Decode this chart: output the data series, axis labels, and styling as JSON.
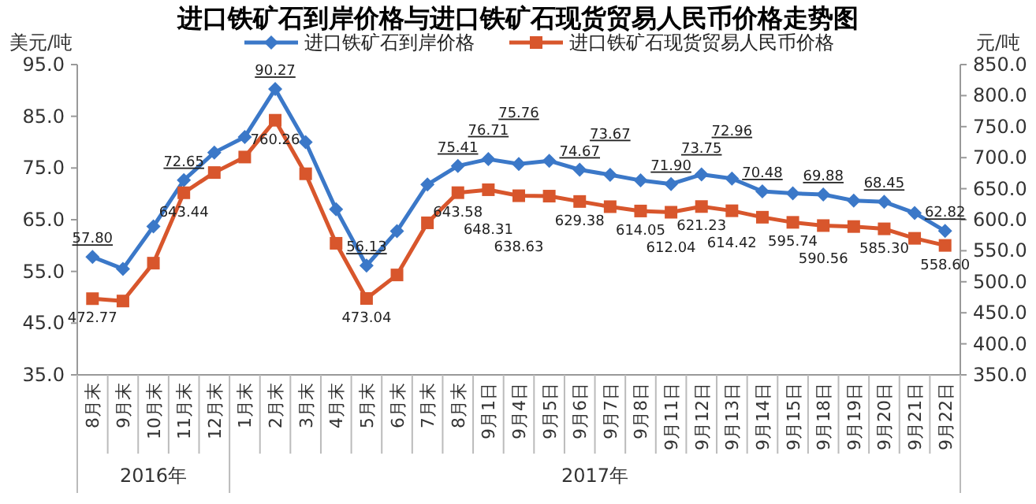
{
  "chart_data": {
    "type": "line",
    "title": "进口铁矿石到岸价格与进口铁矿石现货贸易人民币价格走势图",
    "ylabel": "美元/吨",
    "y2label": "元/吨",
    "categories": [
      "8月末",
      "9月末",
      "10月末",
      "11月末",
      "12月末",
      "1月末",
      "2月末",
      "3月末",
      "4月末",
      "5月末",
      "6月末",
      "7月末",
      "8月末",
      "9月1日",
      "9月4日",
      "9月5日",
      "9月6日",
      "9月7日",
      "9月8日",
      "9月11日",
      "9月12日",
      "9月13日",
      "9月14日",
      "9月15日",
      "9月18日",
      "9月19日",
      "9月20日",
      "9月21日",
      "9月22日"
    ],
    "series": [
      {
        "name": "进口铁矿石到岸价格",
        "color": "#3b78c8",
        "marker": "diamond",
        "values": [
          57.8,
          55.5,
          63.7,
          72.65,
          78,
          81,
          90.27,
          80,
          67,
          56.13,
          62.8,
          71.8,
          75.41,
          76.71,
          75.76,
          76.4,
          74.67,
          73.67,
          72.6,
          71.9,
          73.75,
          72.96,
          70.48,
          70.1,
          69.88,
          68.7,
          68.45,
          66.3,
          62.82
        ],
        "value_labels": [
          "57.80",
          null,
          null,
          "72.65",
          null,
          null,
          "90.27",
          null,
          null,
          "56.13",
          null,
          null,
          "75.41",
          "76.71",
          "75.76",
          null,
          "74.67",
          "73.67",
          null,
          "71.90",
          "73.75",
          "72.96",
          "70.48",
          null,
          "69.88",
          null,
          "68.45",
          null,
          "62.82"
        ]
      },
      {
        "name": "进口铁矿石现货贸易人民币价格",
        "color": "#d8562c",
        "marker": "square",
        "axis": "y2",
        "values": [
          472.77,
          469,
          530,
          643.44,
          676,
          701,
          760.26,
          674,
          562,
          473.04,
          511,
          595,
          643.58,
          648.31,
          638.63,
          638,
          629.38,
          621,
          614.05,
          612.04,
          621.23,
          614.42,
          604,
          595.74,
          590.56,
          589,
          585.3,
          570,
          558.6
        ],
        "value_labels": [
          "472.77",
          null,
          null,
          "643.44",
          null,
          null,
          "760.26",
          null,
          null,
          "473.04",
          null,
          null,
          "643.58",
          "648.31",
          "638.63",
          null,
          "629.38",
          null,
          "614.05",
          "612.04",
          "621.23",
          "614.42",
          null,
          "595.74",
          "590.56",
          null,
          "585.30",
          null,
          "558.60"
        ]
      }
    ],
    "ylim": [
      35,
      95
    ],
    "yticks": [
      {
        "value": 35,
        "label": "35.0"
      },
      {
        "value": 45,
        "label": "45.0"
      },
      {
        "value": 55,
        "label": "55.0"
      },
      {
        "value": 65,
        "label": "65.0"
      },
      {
        "value": 75,
        "label": "75.0"
      },
      {
        "value": 85,
        "label": "85.0"
      },
      {
        "value": 95,
        "label": "95.0"
      }
    ],
    "y2lim": [
      350,
      850
    ],
    "y2ticks": [
      {
        "value": 350,
        "label": "350.0"
      },
      {
        "value": 400,
        "label": "400.0"
      },
      {
        "value": 450,
        "label": "450.0"
      },
      {
        "value": 500,
        "label": "500.0"
      },
      {
        "value": 550,
        "label": "550.0"
      },
      {
        "value": 600,
        "label": "600.0"
      },
      {
        "value": 650,
        "label": "650.0"
      },
      {
        "value": 700,
        "label": "700.0"
      },
      {
        "value": 750,
        "label": "750.0"
      },
      {
        "value": 800,
        "label": "800.0"
      },
      {
        "value": 850,
        "label": "850.0"
      }
    ],
    "annotations": [
      "2016年",
      "2017年"
    ],
    "legend": "top",
    "grid": false
  }
}
